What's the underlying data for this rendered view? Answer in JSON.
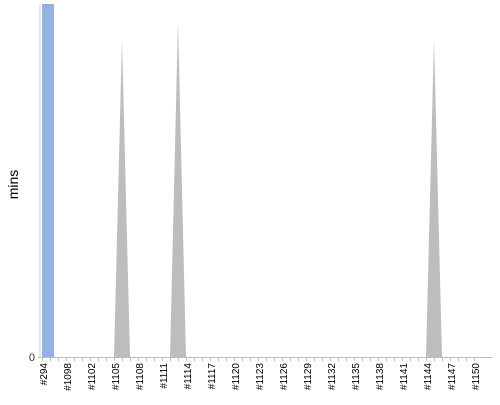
{
  "chart_data": {
    "type": "area",
    "title": "",
    "xlabel": "",
    "ylabel": "mins",
    "y_ticks": [
      "0"
    ],
    "categories": [
      "#294",
      "#1098",
      "#1102",
      "#1105",
      "#1108",
      "#1111",
      "#1114",
      "#1117",
      "#1120",
      "#1123",
      "#1126",
      "#1129",
      "#1132",
      "#1135",
      "#1138",
      "#1141",
      "#1144",
      "#1147",
      "#1150"
    ],
    "x_ticks": [
      {
        "label": "#294",
        "pos": 0
      },
      {
        "label": "#1098",
        "pos": 1
      },
      {
        "label": "#1102",
        "pos": 2
      },
      {
        "label": "#1105",
        "pos": 3
      },
      {
        "label": "#1108",
        "pos": 4
      },
      {
        "label": "#1111",
        "pos": 5
      },
      {
        "label": "#1114",
        "pos": 6
      },
      {
        "label": "#1117",
        "pos": 7
      },
      {
        "label": "#1120",
        "pos": 8
      },
      {
        "label": "#1123",
        "pos": 9
      },
      {
        "label": "#1126",
        "pos": 10
      },
      {
        "label": "#1129",
        "pos": 11
      },
      {
        "label": "#1132",
        "pos": 12
      },
      {
        "label": "#1135",
        "pos": 13
      },
      {
        "label": "#1138",
        "pos": 14
      },
      {
        "label": "#1141",
        "pos": 15
      },
      {
        "label": "#1144",
        "pos": 16
      },
      {
        "label": "#1147",
        "pos": 17
      },
      {
        "label": "#1150",
        "pos": 18
      }
    ],
    "build_spacing": 3,
    "total_builds": 55,
    "ylim": [
      0,
      100
    ],
    "series": [
      {
        "name": "",
        "color": "#bdbdbd",
        "points": [
          {
            "build": 0,
            "value": 100
          },
          {
            "build": 1,
            "value": 0
          },
          {
            "build": 9,
            "value": 0
          },
          {
            "build": 10,
            "value": 90
          },
          {
            "build": 11,
            "value": 0
          },
          {
            "build": 16,
            "value": 0
          },
          {
            "build": 17,
            "value": 95
          },
          {
            "build": 18,
            "value": 0
          },
          {
            "build": 48,
            "value": 0
          },
          {
            "build": 49,
            "value": 90
          },
          {
            "build": 50,
            "value": 0
          }
        ]
      }
    ],
    "highlight": {
      "build": 0,
      "value": 100,
      "color": "#92b3e2"
    },
    "grid": false,
    "legend": "none"
  }
}
